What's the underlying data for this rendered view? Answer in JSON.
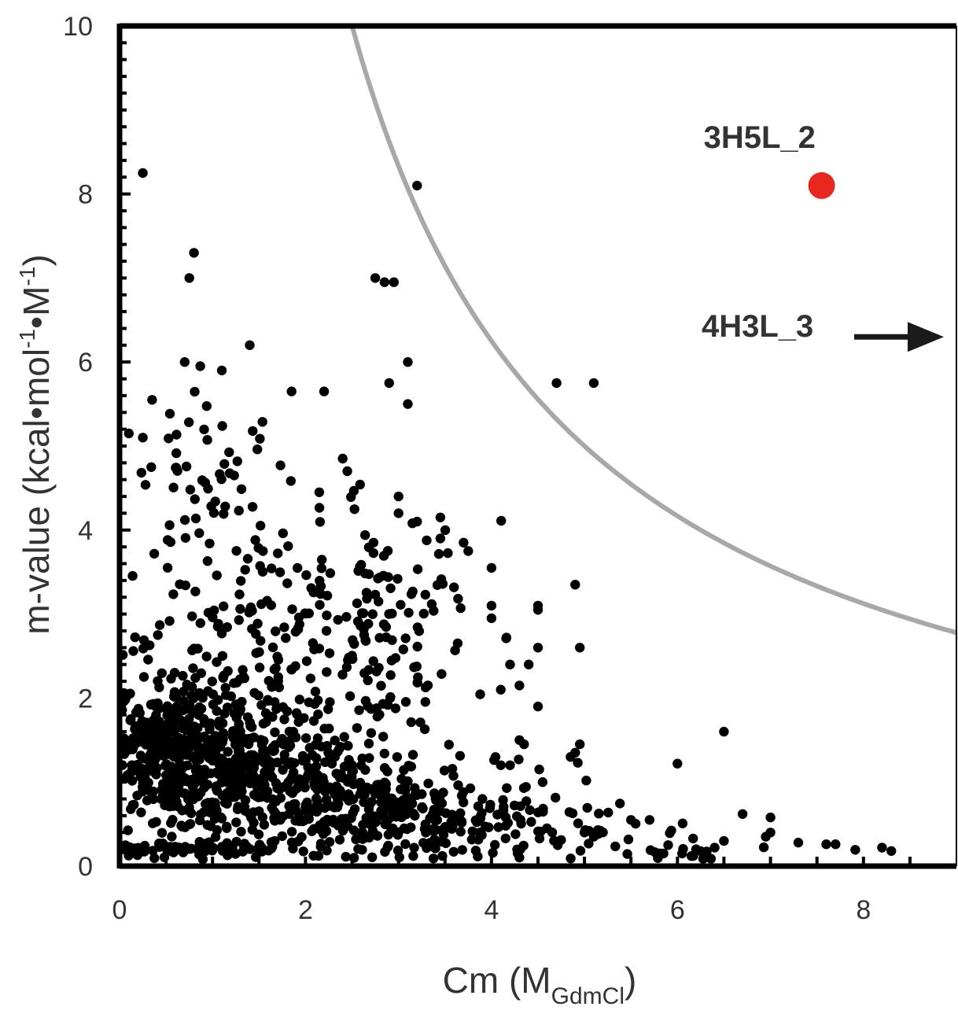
{
  "chart_data": {
    "type": "scatter",
    "title": "",
    "xlabel": {
      "text": "Cm (M",
      "sub": "GdmCl",
      "suffix": ")"
    },
    "ylabel": {
      "parts": [
        "m-value (kcal•mol",
        "-1",
        "•M",
        "-1",
        ")"
      ]
    },
    "xlim": [
      0,
      9
    ],
    "ylim": [
      0,
      10
    ],
    "xticks": [
      0,
      2,
      4,
      6,
      8
    ],
    "yticks": [
      0,
      2,
      4,
      6,
      8,
      10
    ],
    "grid": false,
    "colors": {
      "points": "#000000",
      "highlight": "#e8281e",
      "curve": "#a8a8a8",
      "arrow": "#1a1a1a"
    },
    "curve": {
      "description_equation": "y = 25 / x",
      "x_range": [
        2.5,
        9
      ]
    },
    "highlight_points": [
      {
        "label": "3H5L_2",
        "x": 7.55,
        "y": 8.1
      }
    ],
    "arrow_annotation": {
      "label": "4H3L_3",
      "y": 6.3,
      "direction": "right"
    },
    "seed": 7,
    "cluster_model": [
      {
        "cx": 1.0,
        "cy": 1.2,
        "sx": 0.6,
        "sy": 0.45,
        "n": 380
      },
      {
        "cx": 0.5,
        "cy": 1.5,
        "sx": 0.3,
        "sy": 0.3,
        "n": 150
      },
      {
        "cx": 2.2,
        "cy": 0.8,
        "sx": 0.9,
        "sy": 0.35,
        "n": 320
      },
      {
        "cx": 0.8,
        "cy": 0.2,
        "sx": 0.5,
        "sy": 0.05,
        "n": 80
      },
      {
        "cx": 1.4,
        "cy": 2.6,
        "sx": 0.7,
        "sy": 0.8,
        "n": 170
      },
      {
        "cx": 2.8,
        "cy": 2.8,
        "sx": 0.6,
        "sy": 0.8,
        "n": 130
      },
      {
        "cx": 3.5,
        "cy": 0.5,
        "sx": 0.7,
        "sy": 0.3,
        "n": 150
      },
      {
        "cx": 0.9,
        "cy": 4.6,
        "sx": 0.45,
        "sy": 0.6,
        "n": 55
      },
      {
        "cx": 5.3,
        "cy": 0.3,
        "sx": 1.3,
        "sy": 0.18,
        "n": 55
      }
    ],
    "outliers": [
      {
        "x": 0.25,
        "y": 8.25
      },
      {
        "x": 3.2,
        "y": 8.1
      },
      {
        "x": 0.8,
        "y": 7.3
      },
      {
        "x": 0.75,
        "y": 7.0
      },
      {
        "x": 2.75,
        "y": 7.0
      },
      {
        "x": 2.85,
        "y": 6.95
      },
      {
        "x": 2.95,
        "y": 6.95
      },
      {
        "x": 1.4,
        "y": 6.2
      },
      {
        "x": 0.7,
        "y": 6.0
      },
      {
        "x": 1.1,
        "y": 5.9
      },
      {
        "x": 3.1,
        "y": 6.0
      },
      {
        "x": 2.9,
        "y": 5.75
      },
      {
        "x": 1.85,
        "y": 5.65
      },
      {
        "x": 2.2,
        "y": 5.65
      },
      {
        "x": 4.7,
        "y": 5.75
      },
      {
        "x": 5.1,
        "y": 5.75
      },
      {
        "x": 3.1,
        "y": 5.5
      },
      {
        "x": 0.35,
        "y": 5.55
      },
      {
        "x": 0.25,
        "y": 5.1
      },
      {
        "x": 0.1,
        "y": 5.15
      },
      {
        "x": 2.4,
        "y": 4.85
      },
      {
        "x": 2.45,
        "y": 4.7
      },
      {
        "x": 3.0,
        "y": 4.4
      },
      {
        "x": 3.0,
        "y": 4.2
      },
      {
        "x": 3.2,
        "y": 4.1
      },
      {
        "x": 3.45,
        "y": 4.15
      },
      {
        "x": 3.45,
        "y": 3.9
      },
      {
        "x": 3.7,
        "y": 3.85
      },
      {
        "x": 3.75,
        "y": 3.75
      },
      {
        "x": 4.0,
        "y": 3.55
      },
      {
        "x": 4.5,
        "y": 3.1
      },
      {
        "x": 4.5,
        "y": 3.05
      },
      {
        "x": 4.9,
        "y": 3.35
      },
      {
        "x": 4.0,
        "y": 3.1
      },
      {
        "x": 4.0,
        "y": 2.95
      },
      {
        "x": 4.95,
        "y": 2.6
      },
      {
        "x": 4.5,
        "y": 2.6
      },
      {
        "x": 4.4,
        "y": 2.4
      },
      {
        "x": 4.2,
        "y": 2.4
      },
      {
        "x": 4.3,
        "y": 2.15
      },
      {
        "x": 4.1,
        "y": 2.1
      },
      {
        "x": 4.5,
        "y": 1.9
      },
      {
        "x": 6.5,
        "y": 1.6
      },
      {
        "x": 4.3,
        "y": 1.5
      },
      {
        "x": 4.35,
        "y": 1.45
      },
      {
        "x": 4.95,
        "y": 1.45
      },
      {
        "x": 4.9,
        "y": 1.35
      },
      {
        "x": 4.85,
        "y": 1.3
      },
      {
        "x": 6.0,
        "y": 1.22
      },
      {
        "x": 4.1,
        "y": 1.2
      },
      {
        "x": 4.2,
        "y": 1.2
      },
      {
        "x": 4.55,
        "y": 1.0
      },
      {
        "x": 6.7,
        "y": 0.62
      },
      {
        "x": 7.0,
        "y": 0.58
      },
      {
        "x": 7.0,
        "y": 0.4
      },
      {
        "x": 6.95,
        "y": 0.35
      },
      {
        "x": 5.7,
        "y": 0.55
      },
      {
        "x": 5.5,
        "y": 0.55
      },
      {
        "x": 6.2,
        "y": 0.2
      },
      {
        "x": 6.5,
        "y": 0.3
      },
      {
        "x": 6.4,
        "y": 0.22
      },
      {
        "x": 7.3,
        "y": 0.28
      },
      {
        "x": 7.6,
        "y": 0.26
      },
      {
        "x": 7.7,
        "y": 0.26
      },
      {
        "x": 8.2,
        "y": 0.22
      },
      {
        "x": 8.3,
        "y": 0.18
      },
      {
        "x": 6.05,
        "y": 0.15
      },
      {
        "x": 6.15,
        "y": 0.12
      },
      {
        "x": 5.85,
        "y": 0.15
      },
      {
        "x": 5.9,
        "y": 0.25
      },
      {
        "x": 5.0,
        "y": 0.4
      },
      {
        "x": 5.1,
        "y": 0.35
      }
    ]
  }
}
